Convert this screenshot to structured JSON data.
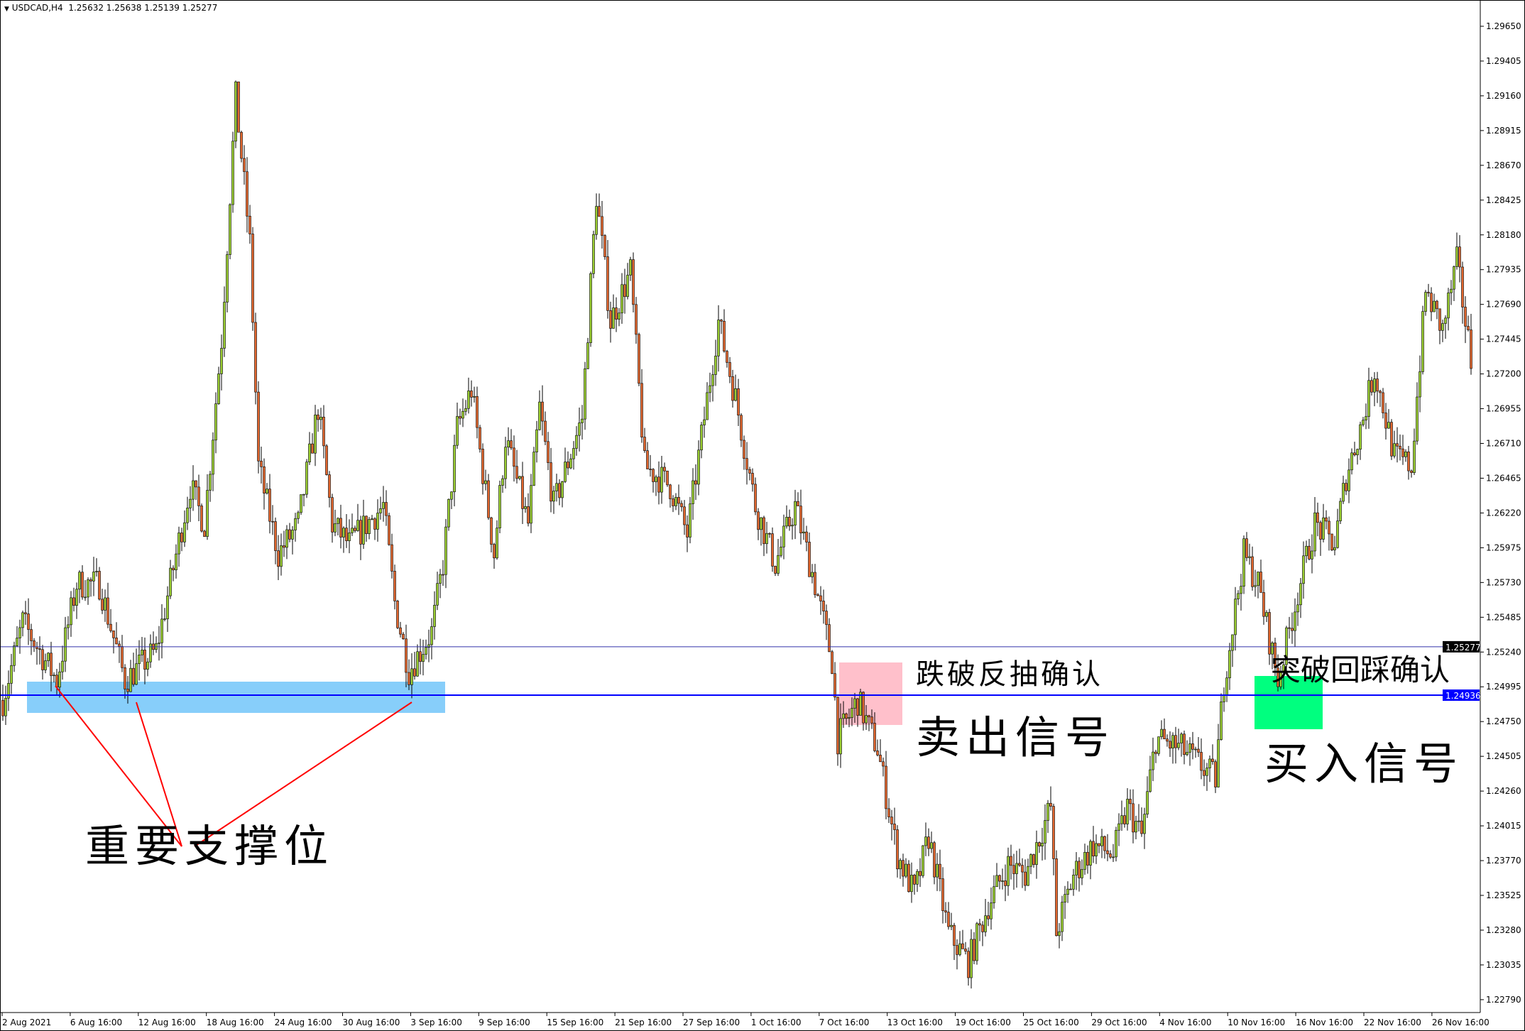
{
  "header": {
    "symbol": "USDCAD,H4",
    "open": "1.25632",
    "high": "1.25638",
    "low": "1.25139",
    "close": "1.25277",
    "menu_icon": "triangle-down-icon"
  },
  "price_axis": {
    "ticks": [
      "1.29650",
      "1.29405",
      "1.29160",
      "1.28915",
      "1.28670",
      "1.28425",
      "1.28180",
      "1.27935",
      "1.27690",
      "1.27445",
      "1.27200",
      "1.26955",
      "1.26710",
      "1.26465",
      "1.26220",
      "1.25975",
      "1.25730",
      "1.25485",
      "1.25240",
      "1.24995",
      "1.24750",
      "1.24505",
      "1.24260",
      "1.24015",
      "1.23770",
      "1.23525",
      "1.23280",
      "1.23035",
      "1.22790"
    ],
    "current_price_label": "1.25277",
    "line_price_label": "1.24936"
  },
  "time_axis": {
    "ticks": [
      "2 Aug 2021",
      "6 Aug 16:00",
      "12 Aug 16:00",
      "18 Aug 16:00",
      "24 Aug 16:00",
      "30 Aug 16:00",
      "3 Sep 16:00",
      "9 Sep 16:00",
      "15 Sep 16:00",
      "21 Sep 16:00",
      "27 Sep 16:00",
      "1 Oct 16:00",
      "7 Oct 16:00",
      "13 Oct 16:00",
      "19 Oct 16:00",
      "25 Oct 16:00",
      "29 Oct 16:00",
      "4 Nov 16:00",
      "10 Nov 16:00",
      "16 Nov 16:00",
      "22 Nov 16:00",
      "26 Nov 16:00"
    ]
  },
  "colors": {
    "bull": "#9acd32",
    "bear": "#e2672f",
    "wick": "#000000",
    "hline": "#0000ff",
    "support_zone": "#87cefa",
    "sell_zone": "#ffc0cb",
    "buy_zone": "#00ff7f",
    "arrow_lines": "#ff0000",
    "current_price_bg": "#000000",
    "line_price_bg": "#0000ff"
  },
  "annotations": {
    "support": "重要支撑位",
    "sell_confirm": "跌破反抽确认",
    "sell_signal": "卖出信号",
    "buy_confirm": "突破回踩确认",
    "buy_signal": "买入信号"
  },
  "chart_data": {
    "type": "candlestick",
    "symbol": "USDCAD",
    "timeframe": "H4",
    "ylim": [
      1.2279,
      1.2965
    ],
    "horizontal_lines": [
      1.25277,
      1.24936
    ],
    "approx_close_path": [
      [
        0,
        1.249
      ],
      [
        7,
        1.2545
      ],
      [
        19,
        1.2504
      ],
      [
        26,
        1.2572
      ],
      [
        34,
        1.2572
      ],
      [
        43,
        1.2504
      ],
      [
        54,
        1.2525
      ],
      [
        66,
        1.2641
      ],
      [
        71,
        1.2614
      ],
      [
        77,
        1.2744
      ],
      [
        82,
        1.2915
      ],
      [
        87,
        1.2812
      ],
      [
        90,
        1.2655
      ],
      [
        97,
        1.2593
      ],
      [
        104,
        1.2614
      ],
      [
        111,
        1.2696
      ],
      [
        116,
        1.2614
      ],
      [
        122,
        1.26
      ],
      [
        128,
        1.2614
      ],
      [
        134,
        1.2627
      ],
      [
        138,
        1.2559
      ],
      [
        143,
        1.2511
      ],
      [
        151,
        1.2538
      ],
      [
        155,
        1.2586
      ],
      [
        160,
        1.2682
      ],
      [
        165,
        1.2709
      ],
      [
        173,
        1.2593
      ],
      [
        177,
        1.2675
      ],
      [
        185,
        1.2614
      ],
      [
        189,
        1.2696
      ],
      [
        194,
        1.2627
      ],
      [
        204,
        1.2689
      ],
      [
        209,
        1.2846
      ],
      [
        214,
        1.2757
      ],
      [
        221,
        1.2792
      ],
      [
        226,
        1.2655
      ],
      [
        235,
        1.2641
      ],
      [
        241,
        1.2607
      ],
      [
        247,
        1.2689
      ],
      [
        252,
        1.2757
      ],
      [
        258,
        1.2703
      ],
      [
        265,
        1.2627
      ],
      [
        272,
        1.2586
      ],
      [
        279,
        1.2627
      ],
      [
        286,
        1.2572
      ],
      [
        292,
        1.2518
      ],
      [
        294,
        1.2463
      ],
      [
        301,
        1.249
      ],
      [
        308,
        1.2456
      ],
      [
        315,
        1.2381
      ],
      [
        321,
        1.2353
      ],
      [
        326,
        1.2394
      ],
      [
        333,
        1.2326
      ],
      [
        340,
        1.2305
      ],
      [
        347,
        1.2346
      ],
      [
        354,
        1.2374
      ],
      [
        360,
        1.2367
      ],
      [
        369,
        1.2415
      ],
      [
        371,
        1.2326
      ],
      [
        377,
        1.2367
      ],
      [
        384,
        1.2388
      ],
      [
        391,
        1.2381
      ],
      [
        396,
        1.2415
      ],
      [
        401,
        1.2394
      ],
      [
        406,
        1.2463
      ],
      [
        415,
        1.2456
      ],
      [
        427,
        1.2435
      ],
      [
        430,
        1.2504
      ],
      [
        437,
        1.2593
      ],
      [
        442,
        1.2572
      ],
      [
        449,
        1.2504
      ],
      [
        456,
        1.2566
      ],
      [
        462,
        1.2614
      ],
      [
        469,
        1.26
      ],
      [
        473,
        1.2648
      ],
      [
        479,
        1.2689
      ],
      [
        483,
        1.2723
      ],
      [
        490,
        1.2662
      ],
      [
        496,
        1.2655
      ],
      [
        501,
        1.2778
      ],
      [
        507,
        1.2751
      ],
      [
        512,
        1.2799
      ],
      [
        517,
        1.273
      ]
    ]
  }
}
